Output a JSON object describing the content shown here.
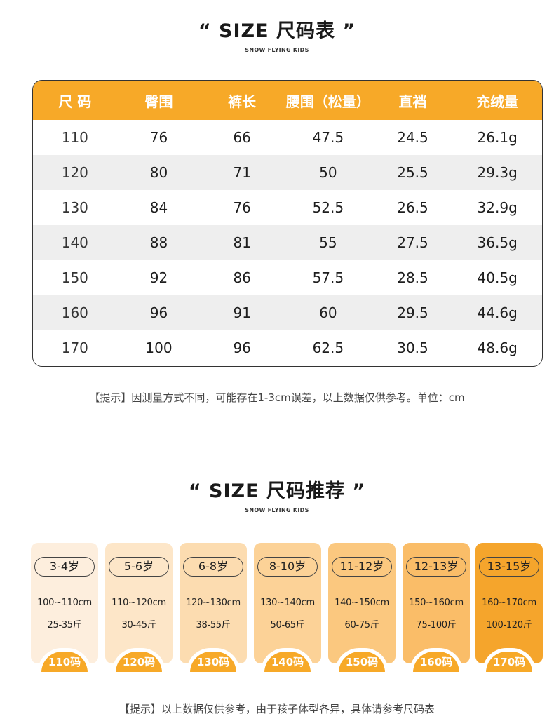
{
  "table_section": {
    "title": "“ SIZE 尺码表 ”",
    "subtitle": "SNOW FLYING KIDS",
    "headers": [
      "尺 码",
      "臀围",
      "裤长",
      "腰围（松量）",
      "直裆",
      "充绒量"
    ],
    "rows": [
      [
        "110",
        "76",
        "66",
        "47.5",
        "24.5",
        "26.1g"
      ],
      [
        "120",
        "80",
        "71",
        "50",
        "25.5",
        "29.3g"
      ],
      [
        "130",
        "84",
        "76",
        "52.5",
        "26.5",
        "32.9g"
      ],
      [
        "140",
        "88",
        "81",
        "55",
        "27.5",
        "36.5g"
      ],
      [
        "150",
        "92",
        "86",
        "57.5",
        "28.5",
        "40.5g"
      ],
      [
        "160",
        "96",
        "91",
        "60",
        "29.5",
        "44.6g"
      ],
      [
        "170",
        "100",
        "96",
        "62.5",
        "30.5",
        "48.6g"
      ]
    ],
    "note": "【提示】因测量方式不同，可能存在1-3cm误差，以上数据仅供参考。单位：cm",
    "header_color": "#f7a928"
  },
  "recommend_section": {
    "title": "“ SIZE 尺码推荐 ”",
    "subtitle": "SNOW FLYING KIDS",
    "cards": [
      {
        "age": "3-4岁",
        "height": "100~110cm",
        "weight": "25-35斤",
        "size": "110码",
        "color": "#fdeedd"
      },
      {
        "age": "5-6岁",
        "height": "110~120cm",
        "weight": "30-45斤",
        "size": "120码",
        "color": "#fde6c8"
      },
      {
        "age": "6-8岁",
        "height": "120~130cm",
        "weight": "38-55斤",
        "size": "130码",
        "color": "#fcdcb0"
      },
      {
        "age": "8-10岁",
        "height": "130~140cm",
        "weight": "50-65斤",
        "size": "140码",
        "color": "#fcd297"
      },
      {
        "age": "11-12岁",
        "height": "140~150cm",
        "weight": "60-75斤",
        "size": "150码",
        "color": "#fbc87f"
      },
      {
        "age": "12-13岁",
        "height": "150~160cm",
        "weight": "75-100斤",
        "size": "160码",
        "color": "#fabd68"
      },
      {
        "age": "13-15岁",
        "height": "160~170cm",
        "weight": "100-120斤",
        "size": "170码",
        "color": "#f5a52c"
      }
    ],
    "note": "【提示】以上数据仅供参考，由于孩子体型各异，具体请参考尺码表"
  }
}
